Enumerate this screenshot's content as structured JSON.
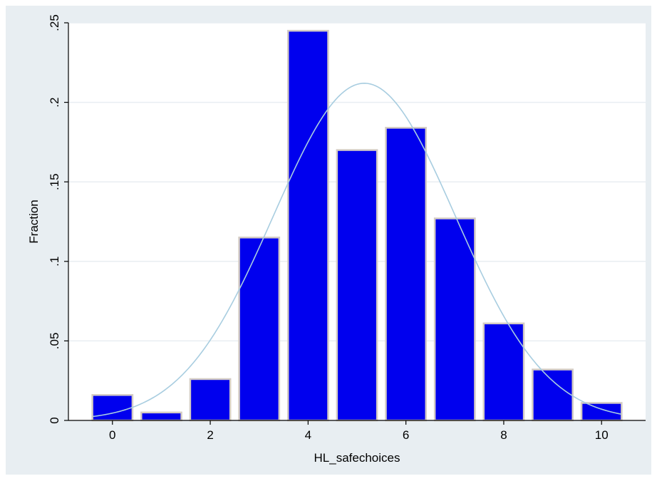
{
  "chart_data": {
    "type": "bar",
    "x": [
      0,
      1,
      2,
      3,
      4,
      5,
      6,
      7,
      8,
      9,
      10
    ],
    "values": [
      0.016,
      0.005,
      0.026,
      0.115,
      0.245,
      0.17,
      0.184,
      0.127,
      0.061,
      0.032,
      0.011
    ],
    "overlay": {
      "type": "normal-density-curve",
      "mean": 5.15,
      "sd": 1.86,
      "peak": 0.212
    },
    "xlabel": "HL_safechoices",
    "ylabel": "Fraction",
    "xlim": [
      -0.9,
      10.9
    ],
    "ylim": [
      0,
      0.25
    ],
    "xticks": [
      0,
      2,
      4,
      6,
      8,
      10
    ],
    "xtick_labels": [
      "0",
      "2",
      "4",
      "6",
      "8",
      "10"
    ],
    "yticks": [
      0,
      0.05,
      0.1,
      0.15,
      0.2,
      0.25
    ],
    "ytick_labels": [
      "0",
      ".05",
      ".1",
      ".15",
      ".2",
      ".25"
    ],
    "grid": true,
    "colors": {
      "bar_fill": "#0000ee",
      "bar_edge": "#d4ccc4",
      "curve": "#a8cde0",
      "plot_bg": "#ffffff",
      "figure_bg": "#e8eef2",
      "grid": "#e8eef2"
    }
  }
}
